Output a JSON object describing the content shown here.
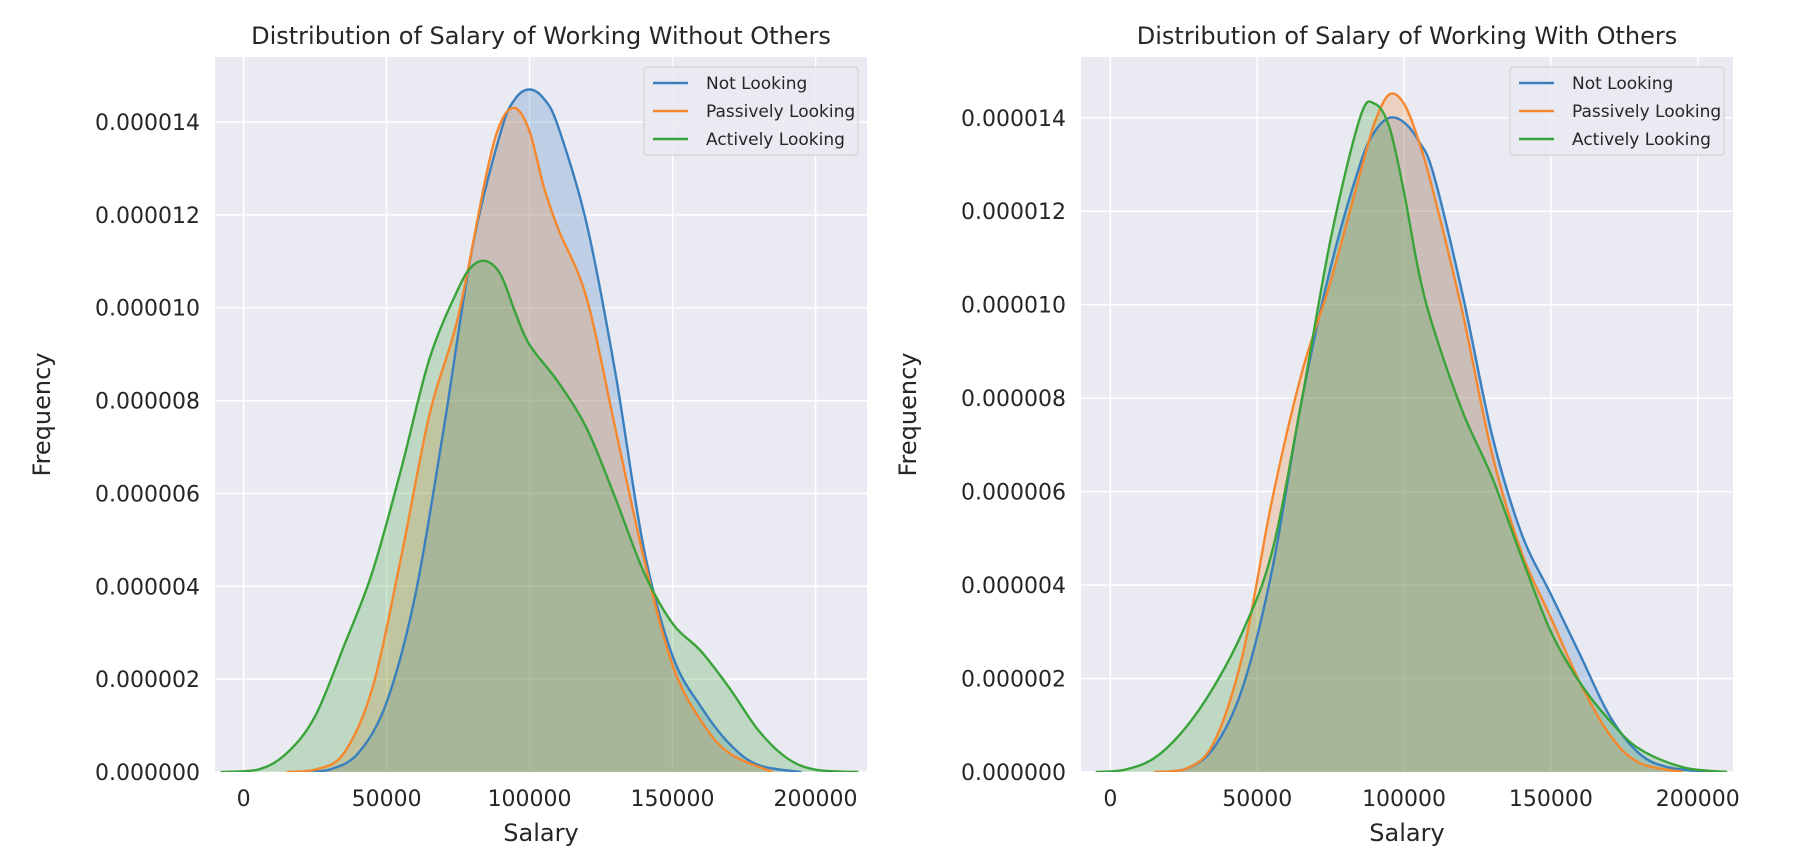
{
  "figure": {
    "background": "#ffffff",
    "axes_background": "#eaeaf2",
    "grid_color": "#ffffff",
    "legend_background": "#eaeaf2",
    "legend_border": "#cccccc"
  },
  "chart_data": [
    {
      "type": "area",
      "title": "Distribution of Salary of Working Without Others",
      "xlabel": "Salary",
      "ylabel": "Frequency",
      "xlim": [
        -10000,
        218000
      ],
      "ylim": [
        0,
        1.54e-05
      ],
      "xticks": [
        0,
        50000,
        100000,
        150000,
        200000
      ],
      "xtick_labels": [
        "0",
        "50000",
        "100000",
        "150000",
        "200000"
      ],
      "yticks": [
        0,
        2e-06,
        4e-06,
        6e-06,
        8e-06,
        1e-05,
        1.2e-05,
        1.4e-05
      ],
      "ytick_labels": [
        "0.000000",
        "0.000002",
        "0.000004",
        "0.000006",
        "0.000008",
        "0.000010",
        "0.000012",
        "0.000014"
      ],
      "grid": true,
      "legend_position": "top-right",
      "series": [
        {
          "name": "Not Looking",
          "color": "#3a7fbe",
          "x": [
            22000,
            30000,
            40000,
            50000,
            60000,
            70000,
            80000,
            90000,
            95000,
            100000,
            105000,
            110000,
            120000,
            130000,
            140000,
            150000,
            160000,
            170000,
            180000,
            195000
          ],
          "y": [
            0,
            5e-08,
            4e-07,
            1.5e-06,
            3.8e-06,
            7.4e-06,
            1.13e-05,
            1.38e-05,
            1.45e-05,
            1.47e-05,
            1.45e-05,
            1.39e-05,
            1.18e-05,
            8.6e-06,
            4.8e-06,
            2.5e-06,
            1.4e-06,
            6e-07,
            1.5e-07,
            0
          ]
        },
        {
          "name": "Passively Looking",
          "color": "#f5882e",
          "x": [
            15000,
            25000,
            35000,
            45000,
            55000,
            65000,
            75000,
            85000,
            90000,
            95000,
            100000,
            105000,
            110000,
            120000,
            130000,
            140000,
            150000,
            160000,
            170000,
            185000
          ],
          "y": [
            0,
            5e-08,
            4e-07,
            1.8e-06,
            4.6e-06,
            7.7e-06,
            9.8e-06,
            1.29e-05,
            1.4e-05,
            1.43e-05,
            1.38e-05,
            1.26e-05,
            1.17e-05,
            1.02e-05,
            7.4e-06,
            4.6e-06,
            2.3e-06,
            1.1e-06,
            4e-07,
            0
          ]
        },
        {
          "name": "Actively Looking",
          "color": "#3aa33a",
          "x": [
            -8000,
            5000,
            15000,
            25000,
            35000,
            45000,
            55000,
            65000,
            75000,
            80000,
            85000,
            90000,
            95000,
            100000,
            110000,
            120000,
            130000,
            140000,
            150000,
            160000,
            170000,
            180000,
            190000,
            200000,
            215000
          ],
          "y": [
            0,
            5e-08,
            4e-07,
            1.2e-06,
            2.7e-06,
            4.3e-06,
            6.5e-06,
            8.9e-06,
            1.04e-05,
            1.09e-05,
            1.1e-05,
            1.07e-05,
            9.9e-06,
            9.2e-06,
            8.4e-06,
            7.4e-06,
            5.9e-06,
            4.3e-06,
            3.2e-06,
            2.6e-06,
            1.8e-06,
            9e-07,
            3e-07,
            5e-08,
            0
          ]
        }
      ]
    },
    {
      "type": "area",
      "title": "Distribution of Salary of Working With Others",
      "xlabel": "Salary",
      "ylabel": "Frequency",
      "xlim": [
        -10000,
        212000
      ],
      "ylim": [
        0,
        1.53e-05
      ],
      "xticks": [
        0,
        50000,
        100000,
        150000,
        200000
      ],
      "xtick_labels": [
        "0",
        "50000",
        "100000",
        "150000",
        "200000"
      ],
      "yticks": [
        0,
        2e-06,
        4e-06,
        6e-06,
        8e-06,
        1e-05,
        1.2e-05,
        1.4e-05
      ],
      "ytick_labels": [
        "0.000000",
        "0.000002",
        "0.000004",
        "0.000006",
        "0.000008",
        "0.000010",
        "0.000012",
        "0.000014"
      ],
      "grid": true,
      "legend_position": "top-right",
      "series": [
        {
          "name": "Not Looking",
          "color": "#3a7fbe",
          "x": [
            15000,
            25000,
            35000,
            45000,
            55000,
            65000,
            75000,
            85000,
            90000,
            95000,
            100000,
            105000,
            110000,
            120000,
            130000,
            140000,
            150000,
            160000,
            170000,
            180000,
            190000,
            205000
          ],
          "y": [
            0,
            5e-08,
            5e-07,
            1.8e-06,
            4.3e-06,
            7.9e-06,
            1.08e-05,
            1.3e-05,
            1.37e-05,
            1.4e-05,
            1.39e-05,
            1.35e-05,
            1.28e-05,
            1.02e-05,
            7.2e-06,
            5.1e-06,
            3.8e-06,
            2.5e-06,
            1.2e-06,
            4e-07,
            1e-07,
            0
          ]
        },
        {
          "name": "Passively Looking",
          "color": "#f5882e",
          "x": [
            15000,
            25000,
            35000,
            45000,
            55000,
            65000,
            75000,
            85000,
            90000,
            95000,
            100000,
            105000,
            110000,
            120000,
            130000,
            140000,
            150000,
            160000,
            170000,
            180000,
            195000
          ],
          "y": [
            0,
            5e-08,
            6e-07,
            2.5e-06,
            5.8e-06,
            8.5e-06,
            1.05e-05,
            1.28e-05,
            1.39e-05,
            1.45e-05,
            1.43e-05,
            1.35e-05,
            1.24e-05,
            9.8e-06,
            6.8e-06,
            4.7e-06,
            3.3e-06,
            1.9e-06,
            8e-07,
            2e-07,
            0
          ]
        },
        {
          "name": "Actively Looking",
          "color": "#3aa33a",
          "x": [
            -5000,
            5000,
            15000,
            25000,
            35000,
            45000,
            55000,
            65000,
            75000,
            85000,
            90000,
            95000,
            100000,
            105000,
            110000,
            120000,
            130000,
            140000,
            150000,
            160000,
            170000,
            180000,
            195000,
            210000
          ],
          "y": [
            0,
            5e-08,
            3e-07,
            9e-07,
            1.8e-06,
            3e-06,
            4.7e-06,
            7.9e-06,
            1.14e-05,
            1.4e-05,
            1.43e-05,
            1.38e-05,
            1.24e-05,
            1.07e-05,
            9.5e-06,
            7.7e-06,
            6.3e-06,
            4.6e-06,
            3e-06,
            1.9e-06,
            1.1e-06,
            5e-07,
            1e-07,
            0
          ]
        }
      ]
    }
  ]
}
